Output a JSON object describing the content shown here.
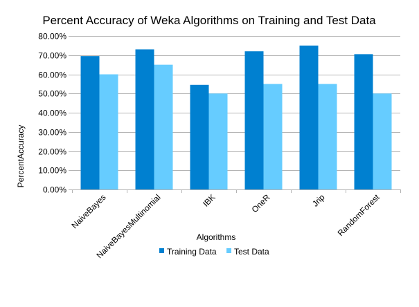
{
  "chart_data": {
    "type": "bar",
    "title": "Percent Accuracy of Weka Algorithms on Training and Test Data",
    "xlabel": "Algorithms",
    "ylabel": "PercentAccuracy",
    "categories": [
      "NaiveBayes",
      "NaiveBayesMultinomial",
      "IBK",
      "OneR",
      "Jrip",
      "RandomForest"
    ],
    "series": [
      {
        "name": "Training Data",
        "color": "#0080d0",
        "values": [
          69.5,
          73.0,
          54.5,
          72.0,
          75.0,
          70.5
        ]
      },
      {
        "name": "Test Data",
        "color": "#66ccff",
        "values": [
          60.0,
          65.0,
          50.0,
          55.0,
          55.0,
          50.0
        ]
      }
    ],
    "ylim": [
      0,
      80
    ],
    "yticks": [
      0,
      10,
      20,
      30,
      40,
      50,
      60,
      70,
      80
    ],
    "ytick_labels": [
      "0.00%",
      "10.00%",
      "20.00%",
      "30.00%",
      "40.00%",
      "50.00%",
      "60.00%",
      "70.00%",
      "80.00%"
    ],
    "grid": true,
    "legend_position": "bottom"
  }
}
